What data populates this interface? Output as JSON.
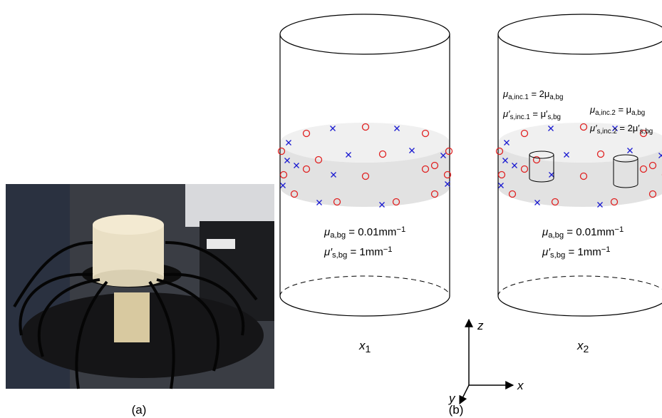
{
  "labels": {
    "a": "(a)",
    "b": "(b)"
  },
  "cylinders": [
    {
      "name": "x",
      "index": "1",
      "background": [
        [
          {
            "t": "μ"
          },
          {
            "sub": "a,bg"
          },
          {
            "t": " = 0.01mm"
          },
          {
            "sup": "−1"
          }
        ],
        [
          {
            "t": "μ′"
          },
          {
            "sub": "s,bg"
          },
          {
            "t": " = 1mm"
          },
          {
            "sup": "−1"
          }
        ]
      ]
    },
    {
      "name": "x",
      "index": "2",
      "background": [
        [
          {
            "t": "μ"
          },
          {
            "sub": "a,bg"
          },
          {
            "t": " = 0.01mm"
          },
          {
            "sup": "−1"
          }
        ],
        [
          {
            "t": "μ′"
          },
          {
            "sub": "s,bg"
          },
          {
            "t": " = 1mm"
          },
          {
            "sup": "−1"
          }
        ]
      ],
      "inclusions": [
        [
          {
            "t": "μ"
          },
          {
            "sub": "a,inc.1"
          },
          {
            "t": " = 2μ"
          },
          {
            "sub": "a,bg"
          }
        ],
        [
          {
            "t": "μ′"
          },
          {
            "sub": "s,inc.1"
          },
          {
            "t": " = μ′"
          },
          {
            "sub": "s,bg"
          }
        ],
        [
          {
            "t": "μ"
          },
          {
            "sub": "a,inc.2"
          },
          {
            "t": " = μ"
          },
          {
            "sub": "a,bg"
          }
        ],
        [
          {
            "t": "μ′"
          },
          {
            "sub": "s,inc.2"
          },
          {
            "t": " = 2μ′"
          },
          {
            "sub": "s,bg"
          }
        ]
      ]
    }
  ],
  "axes": {
    "z": "z",
    "x": "x",
    "y": "y"
  }
}
